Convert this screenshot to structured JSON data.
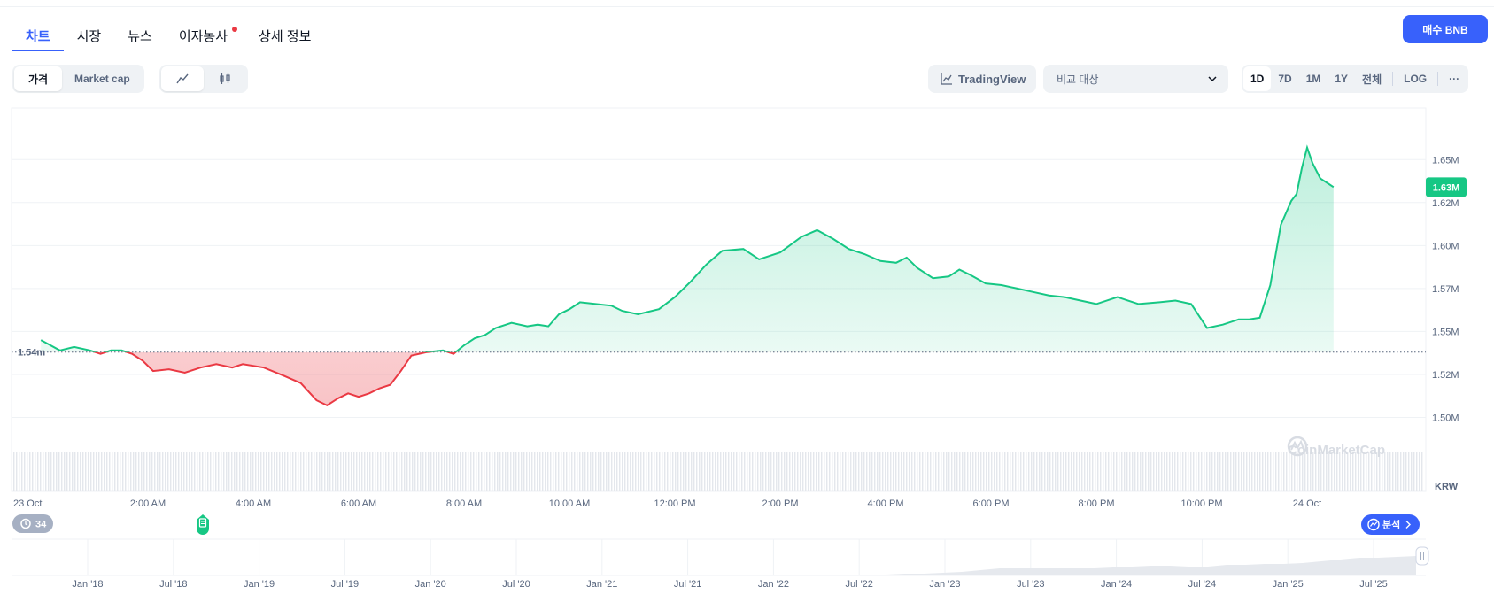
{
  "tabs": [
    {
      "label": "차트",
      "active": true
    },
    {
      "label": "시장",
      "active": false
    },
    {
      "label": "뉴스",
      "active": false
    },
    {
      "label": "이자농사",
      "active": false,
      "dot": true
    },
    {
      "label": "상세 정보",
      "active": false
    }
  ],
  "buy_button": "매수 BNB",
  "toolbar": {
    "metric_options": [
      "가격",
      "Market cap"
    ],
    "metric_selected": "가격",
    "chart_type_icons": [
      "line-chart-icon",
      "candlestick-icon"
    ],
    "chart_type_selected": "line-chart-icon",
    "tradingview_label": "TradingView",
    "compare_placeholder": "비교 대상",
    "ranges": [
      "1D",
      "7D",
      "1M",
      "1Y",
      "전체"
    ],
    "range_selected": "1D",
    "log_label": "LOG",
    "more_label": "···"
  },
  "colors": {
    "up": "#16c784",
    "down": "#ea3943",
    "accent": "#3861fb",
    "muted": "#58667e"
  },
  "chart_data": {
    "type": "line",
    "currency": "KRW",
    "reference_label": "1.54m",
    "reference_value": 1.538,
    "current_label": "1.63M",
    "current_value": 1.634,
    "ylim": [
      1.474,
      1.68
    ],
    "y_ticks": [
      {
        "v": 1.65,
        "label": "1.65M"
      },
      {
        "v": 1.625,
        "label": "1.62M"
      },
      {
        "v": 1.6,
        "label": "1.60M"
      },
      {
        "v": 1.575,
        "label": "1.57M"
      },
      {
        "v": 1.55,
        "label": "1.55M"
      },
      {
        "v": 1.525,
        "label": "1.52M"
      },
      {
        "v": 1.5,
        "label": "1.50M"
      }
    ],
    "x_label_hours": [
      0,
      2,
      4,
      6,
      8,
      10,
      12,
      14,
      16,
      18,
      20,
      22,
      24
    ],
    "x_tick_labels": [
      "23 Oct",
      "2:00 AM",
      "4:00 AM",
      "6:00 AM",
      "8:00 AM",
      "10:00 AM",
      "12:00 PM",
      "2:00 PM",
      "4:00 PM",
      "6:00 PM",
      "8:00 PM",
      "10:00 PM",
      "24 Oct"
    ],
    "x_hours": [
      -0.03,
      0.33,
      0.6,
      0.9,
      1.1,
      1.3,
      1.5,
      1.7,
      1.9,
      2.1,
      2.4,
      2.7,
      3.0,
      3.3,
      3.6,
      3.8,
      4.2,
      4.6,
      4.9,
      5.2,
      5.4,
      5.6,
      5.8,
      6.0,
      6.2,
      6.4,
      6.6,
      6.8,
      7.0,
      7.3,
      7.6,
      7.8,
      8.0,
      8.2,
      8.4,
      8.6,
      8.9,
      9.2,
      9.4,
      9.6,
      9.8,
      10.0,
      10.2,
      10.5,
      10.8,
      11.0,
      11.3,
      11.7,
      12.0,
      12.3,
      12.6,
      12.9,
      13.3,
      13.6,
      14.0,
      14.4,
      14.7,
      15.0,
      15.3,
      15.6,
      15.9,
      16.2,
      16.4,
      16.6,
      16.9,
      17.2,
      17.4,
      17.6,
      17.9,
      18.2,
      18.5,
      18.8,
      19.1,
      19.4,
      19.7,
      20.0,
      20.4,
      20.8,
      21.2,
      21.5,
      21.8,
      22.1,
      22.4,
      22.7,
      22.9,
      23.1,
      23.3,
      23.5,
      23.7,
      23.8,
      23.9,
      24.0,
      24.1,
      24.25,
      24.4,
      24.5
    ],
    "values": [
      1.545,
      1.539,
      1.541,
      1.539,
      1.537,
      1.539,
      1.539,
      1.537,
      1.533,
      1.527,
      1.528,
      1.526,
      1.529,
      1.531,
      1.529,
      1.531,
      1.529,
      1.524,
      1.52,
      1.51,
      1.507,
      1.511,
      1.514,
      1.512,
      1.514,
      1.517,
      1.519,
      1.527,
      1.536,
      1.538,
      1.539,
      1.537,
      1.542,
      1.546,
      1.548,
      1.552,
      1.555,
      1.553,
      1.554,
      1.553,
      1.56,
      1.563,
      1.567,
      1.566,
      1.565,
      1.562,
      1.56,
      1.563,
      1.57,
      1.579,
      1.589,
      1.597,
      1.598,
      1.592,
      1.596,
      1.605,
      1.609,
      1.604,
      1.598,
      1.595,
      1.591,
      1.59,
      1.593,
      1.587,
      1.581,
      1.582,
      1.586,
      1.583,
      1.578,
      1.577,
      1.575,
      1.573,
      1.571,
      1.57,
      1.568,
      1.566,
      1.57,
      1.566,
      1.567,
      1.568,
      1.566,
      1.552,
      1.554,
      1.557,
      1.557,
      1.558,
      1.577,
      1.612,
      1.626,
      1.63,
      1.645,
      1.657,
      1.648,
      1.639,
      1.636,
      1.634
    ],
    "overview_x_labels": [
      "Jan '18",
      "Jul '18",
      "Jan '19",
      "Jul '19",
      "Jan '20",
      "Jul '20",
      "Jan '21",
      "Jul '21",
      "Jan '22",
      "Jul '22",
      "Jan '23",
      "Jul '23",
      "Jan '24",
      "Jul '24",
      "Jan '25",
      "Jul '25"
    ]
  },
  "events": {
    "history_count": "34",
    "analysis_label": "분석"
  },
  "watermark": "CoinMarketCap"
}
